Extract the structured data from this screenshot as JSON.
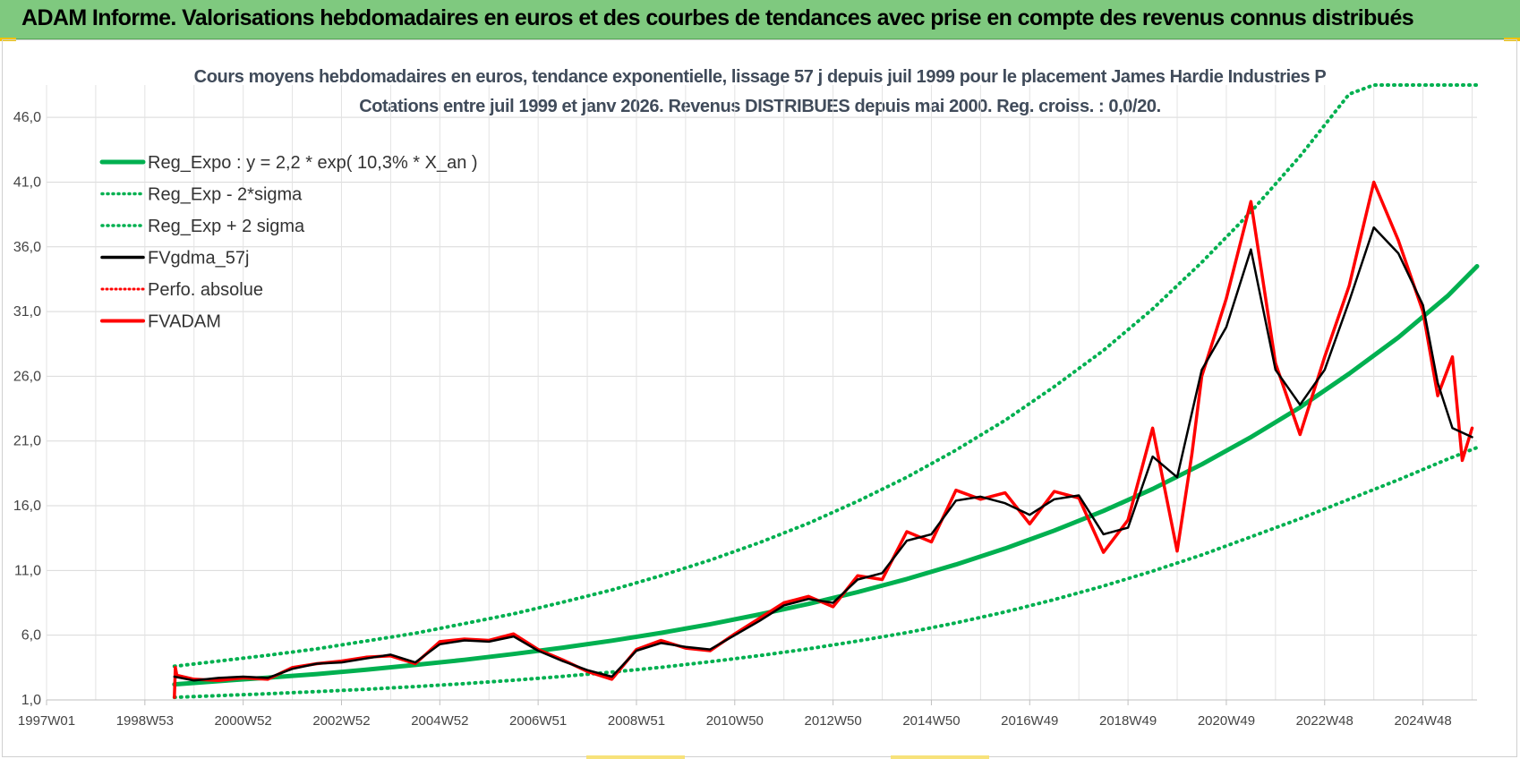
{
  "header": {
    "title": "ADAM Informe. Valorisations hebdomadaires en euros et des courbes de tendances avec prise en compte des revenus connus distribués"
  },
  "colors": {
    "banner": "#7fc97f",
    "reg_expo": "#00b050",
    "sigma": "#00b050",
    "fvgdma": "#000000",
    "perfo": "#ff0000",
    "fvadam": "#ff0000"
  },
  "chart_data": {
    "type": "line",
    "title_line1": "Cours moyens hebdomadaires en euros, tendance exponentielle, lissage 57 j depuis juil 1999 pour le placement James Hardie Industries P",
    "title_line2": "Cotations entre juil 1999 et janv 2026. Revenus DISTRIBUES depuis mai 2000. Reg. croiss. : 0,0/20.",
    "y_ticks": [
      "1,0",
      "6,0",
      "11,0",
      "16,0",
      "21,0",
      "26,0",
      "31,0",
      "36,0",
      "41,0",
      "46,0"
    ],
    "y_tick_values": [
      1,
      6,
      11,
      16,
      21,
      26,
      31,
      36,
      41,
      46
    ],
    "ylim": [
      1,
      48.5
    ],
    "x_tick_labels": [
      "1997W01",
      "1998W53",
      "2000W52",
      "2002W52",
      "2004W52",
      "2006W51",
      "2008W51",
      "2010W50",
      "2012W50",
      "2014W50",
      "2016W49",
      "2018W49",
      "2020W49",
      "2022W48",
      "2024W48"
    ],
    "x_tick_years": [
      1997.0,
      1999.0,
      2001.0,
      2003.0,
      2005.0,
      2007.0,
      2009.0,
      2011.0,
      2013.0,
      2015.0,
      2017.0,
      2019.0,
      2021.0,
      2023.0,
      2025.0
    ],
    "xlim": [
      1997.0,
      2026.1
    ],
    "legend_position": "top-left",
    "grid": true,
    "legend": [
      {
        "label": "Reg_Expo : y = 2,2 * exp( 10,3% *  X_an )",
        "style": "solid-green"
      },
      {
        "label": "Reg_Exp - 2*sigma",
        "style": "dotted-green"
      },
      {
        "label": "Reg_Exp + 2 sigma",
        "style": "dotted-green"
      },
      {
        "label": "FVgdma_57j",
        "style": "solid-black"
      },
      {
        "label": "Perfo. absolue",
        "style": "dotted-red"
      },
      {
        "label": "FVADAM",
        "style": "solid-red"
      }
    ],
    "series": [
      {
        "key": "reg_expo",
        "x": [
          1999.6,
          2000.5,
          2001.5,
          2002.5,
          2003.5,
          2004.5,
          2005.5,
          2006.5,
          2007.5,
          2008.5,
          2009.5,
          2010.5,
          2011.5,
          2012.5,
          2013.5,
          2014.5,
          2015.5,
          2016.5,
          2017.5,
          2018.5,
          2019.5,
          2020.5,
          2021.5,
          2022.5,
          2023.5,
          2024.5,
          2025.5,
          2026.1
        ],
        "y": [
          2.2,
          2.45,
          2.72,
          3.0,
          3.33,
          3.7,
          4.1,
          4.55,
          5.04,
          5.58,
          6.18,
          6.85,
          7.6,
          8.42,
          9.33,
          10.34,
          11.46,
          12.7,
          14.08,
          15.6,
          17.3,
          19.2,
          21.3,
          23.6,
          26.2,
          29.0,
          32.2,
          34.5
        ]
      },
      {
        "key": "reg_minus",
        "x": [
          1999.6,
          2000.5,
          2001.5,
          2002.5,
          2003.5,
          2004.5,
          2005.5,
          2006.5,
          2007.5,
          2008.5,
          2009.5,
          2010.5,
          2011.5,
          2012.5,
          2013.5,
          2014.5,
          2015.5,
          2016.5,
          2017.5,
          2018.5,
          2019.5,
          2020.5,
          2021.5,
          2022.5,
          2023.5,
          2024.5,
          2025.5,
          2026.1
        ],
        "y": [
          1.2,
          1.33,
          1.48,
          1.64,
          1.82,
          2.03,
          2.26,
          2.52,
          2.82,
          3.15,
          3.52,
          3.95,
          4.42,
          4.95,
          5.55,
          6.2,
          6.95,
          7.8,
          8.75,
          9.8,
          10.95,
          12.2,
          13.6,
          15.0,
          16.5,
          18.0,
          19.6,
          20.5
        ]
      },
      {
        "key": "reg_plus",
        "x": [
          1999.6,
          2000.5,
          2001.5,
          2002.5,
          2003.5,
          2004.5,
          2005.5,
          2006.5,
          2007.5,
          2008.5,
          2009.5,
          2010.5,
          2011.5,
          2012.5,
          2013.5,
          2014.5,
          2015.5,
          2016.5,
          2017.5,
          2018.5,
          2019.5,
          2020.5,
          2021.5,
          2022.5,
          2023.5,
          2024.0,
          2024.3,
          2025.0,
          2026.1
        ],
        "y": [
          3.6,
          4.0,
          4.45,
          4.95,
          5.55,
          6.15,
          6.9,
          7.65,
          8.55,
          9.5,
          10.6,
          11.8,
          13.15,
          14.65,
          16.35,
          18.2,
          20.3,
          22.6,
          25.2,
          28.0,
          31.2,
          34.8,
          38.7,
          43.0,
          47.8,
          48.5,
          48.5,
          48.5,
          48.5
        ]
      },
      {
        "key": "fvgdma",
        "x": [
          1999.6,
          2000.0,
          2000.5,
          2001.0,
          2001.5,
          2002.0,
          2002.5,
          2003.0,
          2003.5,
          2004.0,
          2004.5,
          2005.0,
          2005.5,
          2006.0,
          2006.5,
          2007.0,
          2007.5,
          2008.0,
          2008.5,
          2009.0,
          2009.5,
          2010.0,
          2010.5,
          2011.0,
          2011.5,
          2012.0,
          2012.5,
          2013.0,
          2013.5,
          2014.0,
          2014.5,
          2015.0,
          2015.5,
          2016.0,
          2016.5,
          2017.0,
          2017.5,
          2018.0,
          2018.5,
          2019.0,
          2019.5,
          2020.0,
          2020.5,
          2021.0,
          2021.5,
          2022.0,
          2022.5,
          2023.0,
          2023.5,
          2024.0,
          2024.5,
          2025.0,
          2025.3,
          2025.6,
          2026.0
        ],
        "y": [
          2.8,
          2.5,
          2.7,
          2.8,
          2.7,
          3.4,
          3.8,
          3.9,
          4.2,
          4.5,
          3.9,
          5.3,
          5.6,
          5.5,
          5.9,
          4.8,
          4.0,
          3.3,
          2.8,
          4.8,
          5.4,
          5.1,
          4.9,
          6.0,
          7.1,
          8.3,
          8.8,
          8.5,
          10.3,
          10.8,
          13.3,
          13.8,
          16.4,
          16.7,
          16.2,
          15.3,
          16.5,
          16.8,
          13.8,
          14.3,
          19.8,
          18.2,
          26.5,
          29.8,
          35.8,
          26.5,
          23.8,
          26.5,
          31.8,
          37.5,
          35.5,
          31.5,
          25.5,
          22.0,
          21.3
        ]
      },
      {
        "key": "fvadam",
        "x": [
          1999.6,
          1999.62,
          1999.65,
          2000.0,
          2000.5,
          2001.0,
          2001.5,
          2002.0,
          2002.5,
          2003.0,
          2003.5,
          2004.0,
          2004.5,
          2005.0,
          2005.5,
          2006.0,
          2006.5,
          2007.0,
          2007.5,
          2008.0,
          2008.5,
          2009.0,
          2009.5,
          2010.0,
          2010.5,
          2011.0,
          2011.5,
          2012.0,
          2012.5,
          2013.0,
          2013.5,
          2014.0,
          2014.5,
          2015.0,
          2015.5,
          2016.0,
          2016.5,
          2017.0,
          2017.5,
          2018.0,
          2018.5,
          2019.0,
          2019.5,
          2020.0,
          2020.3,
          2020.5,
          2021.0,
          2021.5,
          2022.0,
          2022.5,
          2023.0,
          2023.5,
          2024.0,
          2024.5,
          2025.0,
          2025.3,
          2025.6,
          2025.8,
          2026.0
        ],
        "y": [
          1.2,
          3.5,
          2.9,
          2.6,
          2.5,
          2.7,
          2.6,
          3.5,
          3.8,
          4.0,
          4.3,
          4.4,
          3.8,
          5.5,
          5.7,
          5.6,
          6.1,
          4.9,
          4.1,
          3.2,
          2.6,
          4.9,
          5.6,
          5.0,
          4.8,
          6.1,
          7.3,
          8.5,
          9.0,
          8.2,
          10.6,
          10.3,
          14.0,
          13.2,
          17.2,
          16.5,
          17.0,
          14.6,
          17.1,
          16.6,
          12.4,
          14.9,
          22.0,
          12.5,
          20.0,
          26.0,
          32.0,
          39.5,
          27.0,
          21.5,
          27.5,
          33.0,
          41.0,
          36.5,
          31.0,
          24.5,
          27.5,
          19.5,
          22.0
        ]
      }
    ]
  }
}
